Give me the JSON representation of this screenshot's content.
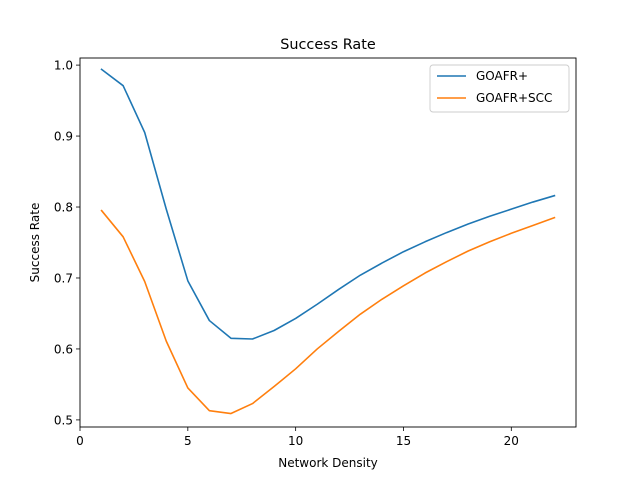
{
  "chart_data": {
    "type": "line",
    "title": "Success Rate",
    "xlabel": "Network Density",
    "ylabel": "Success Rate",
    "xlim": [
      0,
      23
    ],
    "ylim": [
      0.49,
      1.01
    ],
    "x_ticks": [
      0,
      5,
      10,
      15,
      20
    ],
    "y_ticks": [
      0.5,
      0.6,
      0.7,
      0.8,
      0.9,
      1.0
    ],
    "x_tick_labels": [
      "0",
      "5",
      "10",
      "15",
      "20"
    ],
    "y_tick_labels": [
      "0.5",
      "0.6",
      "0.7",
      "0.8",
      "0.9",
      "1.0"
    ],
    "grid": false,
    "legend_position": "top-right",
    "series": [
      {
        "name": "GOAFR+",
        "color": "#1f77b4",
        "x": [
          1,
          2,
          3,
          4,
          5,
          6,
          7,
          8,
          9,
          10,
          11,
          12,
          13,
          14,
          15,
          16,
          17,
          18,
          19,
          20,
          21,
          22
        ],
        "values": [
          0.994,
          0.971,
          0.905,
          0.797,
          0.696,
          0.64,
          0.615,
          0.614,
          0.626,
          0.643,
          0.663,
          0.684,
          0.704,
          0.721,
          0.737,
          0.751,
          0.764,
          0.776,
          0.787,
          0.797,
          0.807,
          0.816
        ]
      },
      {
        "name": "GOAFR+SCC",
        "color": "#ff7f0e",
        "x": [
          1,
          2,
          3,
          4,
          5,
          6,
          7,
          8,
          9,
          10,
          11,
          12,
          13,
          14,
          15,
          16,
          17,
          18,
          19,
          20,
          21,
          22
        ],
        "values": [
          0.795,
          0.758,
          0.695,
          0.611,
          0.545,
          0.513,
          0.509,
          0.523,
          0.547,
          0.572,
          0.6,
          0.625,
          0.649,
          0.67,
          0.689,
          0.707,
          0.723,
          0.738,
          0.751,
          0.763,
          0.774,
          0.785
        ]
      }
    ]
  }
}
